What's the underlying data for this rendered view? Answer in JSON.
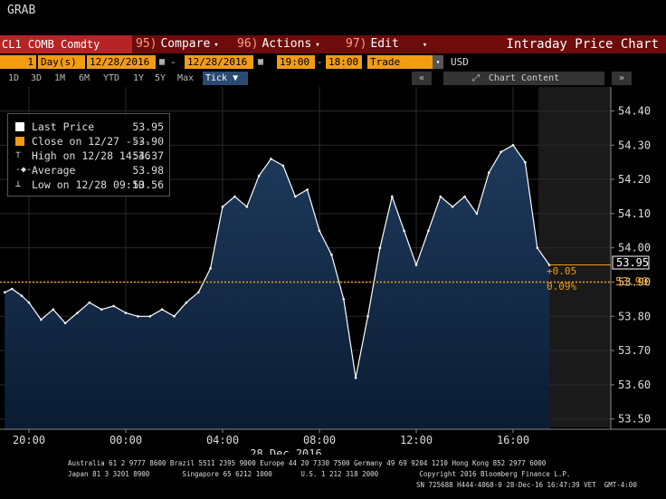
{
  "window_title": "GRAB",
  "menu_bar": {
    "ticker": "CL1 COMB Comdty",
    "items": [
      {
        "num": "95)",
        "label": "Compare"
      },
      {
        "num": "96)",
        "label": "Actions"
      },
      {
        "num": "97)",
        "label": "Edit"
      }
    ],
    "title": "Intraday Price Chart"
  },
  "settings_bar": {
    "period_value": "1",
    "period_unit": "Day(s)",
    "start_date": "12/28/2016",
    "end_date": "12/28/2016",
    "start_time": "19:00",
    "end_time": "18:00",
    "field": "Trade",
    "currency": "USD"
  },
  "range_bar": {
    "ranges": [
      "1D",
      "3D",
      "1M",
      "6M",
      "YTD",
      "1Y",
      "5Y",
      "Max"
    ],
    "tick_label": "Tick",
    "chart_content_label": "Chart Content"
  },
  "legend": {
    "items": [
      {
        "label": "Last Price",
        "value": "53.95",
        "color": "#ffffff"
      },
      {
        "label": "Close on 12/27 ----",
        "value": "53.90",
        "color": "#f39c12"
      },
      {
        "label": "High on 12/28 14:36",
        "value": "54.37",
        "color": "#dddddd"
      },
      {
        "label": "Average",
        "value": "53.98",
        "color": "#dddddd"
      },
      {
        "label": "Low on 12/28 09:10",
        "value": "53.56",
        "color": "#dddddd"
      }
    ]
  },
  "annotations": {
    "last_price_tag": "53.95",
    "close_tag": "53.90",
    "change_abs": "+0.05",
    "change_pct": "0.09%"
  },
  "colors": {
    "accent": "#f39c12",
    "menu_bg": "#6e0b0b",
    "ticker_bg": "#b72424",
    "area_top": "#1e3a5c",
    "area_bottom": "#0b1c33"
  },
  "chart_data": {
    "type": "area",
    "title": "",
    "x_tick_labels": [
      "20:00",
      "00:00",
      "04:00",
      "08:00",
      "12:00",
      "16:00"
    ],
    "date_label": "28 Dec 2016",
    "y_tick_labels": [
      "54.40",
      "54.30",
      "54.20",
      "54.10",
      "54.00",
      "53.90",
      "53.80",
      "53.70",
      "53.60",
      "53.50"
    ],
    "ylim": [
      53.47,
      54.47
    ],
    "series": [
      {
        "name": "Last Price",
        "x_hours_since_1900": [
          0,
          0.3,
          0.7,
          1.0,
          1.5,
          2.0,
          2.5,
          3.0,
          3.5,
          4.0,
          4.5,
          5.0,
          5.5,
          6.0,
          6.5,
          7.0,
          7.5,
          8.0,
          8.5,
          9.0,
          9.5,
          10.0,
          10.5,
          11.0,
          11.5,
          12.0,
          12.5,
          13.0,
          13.5,
          14.0,
          14.5,
          15.0,
          15.5,
          16.0,
          16.5,
          17.0,
          17.5,
          18.0,
          18.5,
          19.0,
          19.5,
          20.0,
          20.5,
          21.0,
          21.5,
          22.0,
          22.5
        ],
        "y": [
          53.87,
          53.88,
          53.86,
          53.84,
          53.79,
          53.82,
          53.78,
          53.81,
          53.84,
          53.82,
          53.83,
          53.81,
          53.8,
          53.8,
          53.82,
          53.8,
          53.84,
          53.87,
          53.94,
          54.12,
          54.15,
          54.12,
          54.21,
          54.26,
          54.24,
          54.15,
          54.17,
          54.05,
          53.98,
          53.85,
          53.62,
          53.8,
          54.0,
          54.15,
          54.05,
          53.95,
          54.05,
          54.15,
          54.12,
          54.15,
          54.1,
          54.22,
          54.28,
          54.3,
          54.25,
          54.0,
          53.95
        ]
      }
    ],
    "reference_lines": [
      {
        "name": "Close on 12/27",
        "value": 53.9
      }
    ]
  },
  "footer": {
    "line1": "Australia 61 2 9777 8600 Brazil 5511 2395 9000 Europe 44 20 7330 7500 Germany 49 69 9204 1210 Hong Kong 852 2977 6000",
    "line2": "Japan 81 3 3201 8900        Singapore 65 6212 1000       U.S. 1 212 318 2000          Copyright 2016 Bloomberg Finance L.P.",
    "line3": "SN 725688 H444-4068-0 28-Dec-16 16:47:39 VET  GMT-4:00"
  }
}
